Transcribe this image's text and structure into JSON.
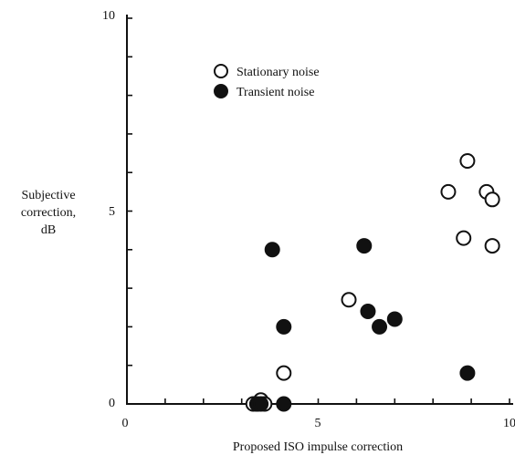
{
  "chart_data": {
    "type": "scatter",
    "title": "",
    "xlabel": "Proposed ISO impulse correction",
    "ylabel_lines": [
      "Subjective",
      "correction,",
      "dB"
    ],
    "xlim": [
      0,
      10
    ],
    "ylim": [
      0,
      10
    ],
    "x_tick_labels": [
      "0",
      "5",
      "10"
    ],
    "y_tick_labels": [
      "0",
      "5",
      "10"
    ],
    "legend_position": "top-center",
    "series": [
      {
        "name": "Stationary noise",
        "marker": "open-circle",
        "points": [
          [
            3.3,
            0.0
          ],
          [
            3.4,
            0.0
          ],
          [
            3.5,
            0.1
          ],
          [
            3.6,
            0.0
          ],
          [
            4.1,
            0.8
          ],
          [
            5.8,
            2.7
          ],
          [
            8.4,
            5.5
          ],
          [
            8.8,
            4.3
          ],
          [
            8.9,
            6.3
          ],
          [
            9.4,
            5.5
          ],
          [
            9.55,
            5.3
          ],
          [
            9.55,
            4.1
          ]
        ]
      },
      {
        "name": "Transient noise",
        "marker": "filled-circle",
        "points": [
          [
            3.4,
            0.0
          ],
          [
            3.5,
            0.0
          ],
          [
            4.1,
            0.0
          ],
          [
            3.8,
            4.0
          ],
          [
            4.1,
            2.0
          ],
          [
            6.2,
            4.1
          ],
          [
            6.3,
            2.4
          ],
          [
            6.6,
            2.0
          ],
          [
            7.0,
            2.2
          ],
          [
            8.9,
            0.8
          ]
        ]
      }
    ]
  }
}
